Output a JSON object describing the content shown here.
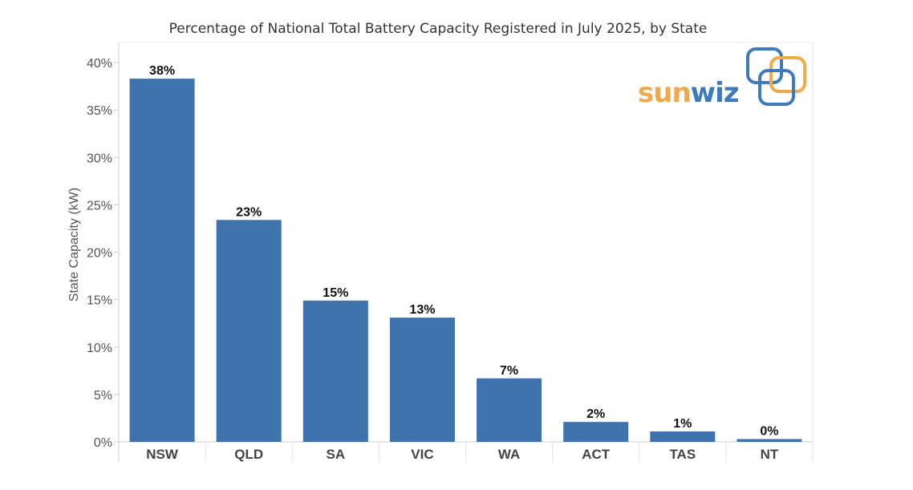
{
  "chart_data": {
    "type": "bar",
    "title": "Percentage of National Total Battery Capacity Registered in July 2025, by State",
    "ylabel": "State Capacity (kW)",
    "xlabel": "",
    "categories": [
      "NSW",
      "QLD",
      "SA",
      "VIC",
      "WA",
      "ACT",
      "TAS",
      "NT"
    ],
    "values": [
      38.3,
      23.4,
      14.9,
      13.1,
      6.7,
      2.1,
      1.1,
      0.3
    ],
    "data_labels": [
      "38%",
      "23%",
      "15%",
      "13%",
      "7%",
      "2%",
      "1%",
      "0%"
    ],
    "yticks": [
      "0%",
      "5%",
      "10%",
      "15%",
      "20%",
      "25%",
      "30%",
      "35%",
      "40%"
    ],
    "ylim": [
      0,
      40
    ],
    "bar_color": "#3E73AE",
    "grid": false
  },
  "logo": {
    "text_part1": "sun",
    "text_part2": "wiz",
    "color_orange": "#F0A94B",
    "color_blue": "#3E7BBE"
  }
}
